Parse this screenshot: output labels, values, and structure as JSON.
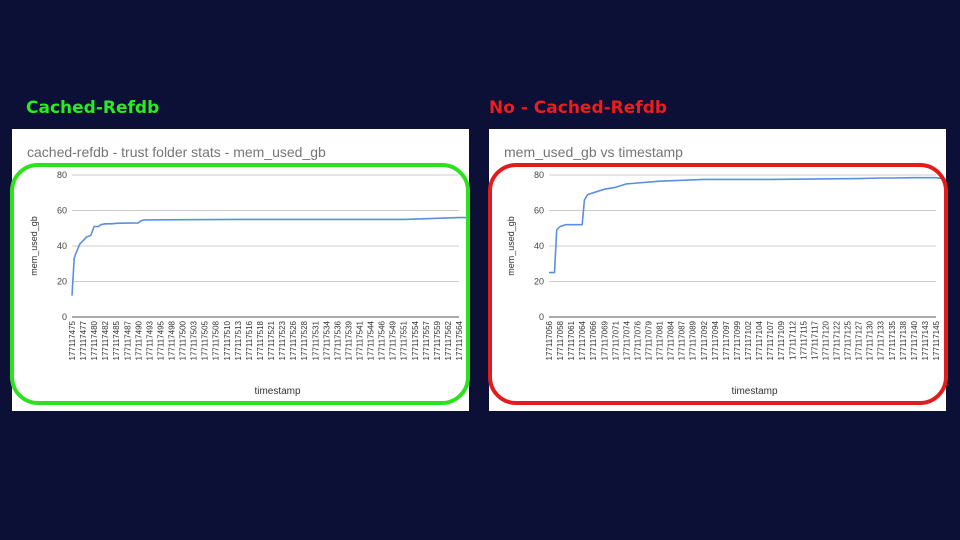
{
  "slide": {
    "background": "#0c0f36",
    "left_heading": "Cached-Refdb",
    "left_heading_color": "#2bed1e",
    "right_heading": "No - Cached-Refdb",
    "right_heading_color": "#ee1c1c",
    "left_frame_color": "#2be21d",
    "right_frame_color": "#e21b1b"
  },
  "chart_data": [
    {
      "type": "line",
      "title": "cached-refdb - trust folder stats - mem_used_gb",
      "xlabel": "timestamp",
      "ylabel": "mem_used_gb",
      "ylim": [
        0,
        80
      ],
      "yticks": [
        0,
        20,
        40,
        60,
        80
      ],
      "grid": true,
      "line_color": "#5b8fe0",
      "x_tick_labels": [
        "177117475",
        "177117477",
        "177117480",
        "177117482",
        "177117485",
        "177117487",
        "177117490",
        "177117493",
        "177117495",
        "177117498",
        "177117500",
        "177117503",
        "177117505",
        "177117508",
        "177117510",
        "177117513",
        "177117516",
        "177117518",
        "177117521",
        "177117523",
        "177117526",
        "177117528",
        "177117531",
        "177117534",
        "177117536",
        "177117539",
        "177117541",
        "177117544",
        "177117546",
        "177117549",
        "177117551",
        "177117554",
        "177117557",
        "177117559",
        "177117562",
        "177117564"
      ],
      "series": [
        {
          "x": [
            0,
            0.2,
            0.3,
            0.5,
            0.7,
            1,
            1.3,
            1.7,
            2,
            2.4,
            2.6,
            3,
            3.6,
            4,
            6,
            6.2,
            6.4,
            6.6,
            7,
            10,
            15,
            20,
            25,
            30,
            35,
            36,
            36.6
          ],
          "y": [
            12,
            33,
            35,
            38,
            41,
            43,
            45,
            46,
            51,
            51,
            52,
            52.5,
            52.5,
            52.8,
            53,
            54,
            54.5,
            54.7,
            54.7,
            54.8,
            55,
            55,
            55,
            55,
            56,
            56,
            55.5
          ]
        }
      ]
    },
    {
      "type": "line",
      "title": "mem_used_gb vs timestamp",
      "xlabel": "timestamp",
      "ylabel": "mem_used_gb",
      "ylim": [
        0,
        80
      ],
      "yticks": [
        0,
        20,
        40,
        60,
        80
      ],
      "grid": true,
      "line_color": "#5b8fe0",
      "x_tick_labels": [
        "177117056",
        "177117058",
        "177117061",
        "177117064",
        "177117066",
        "177117069",
        "177117071",
        "177117074",
        "177117076",
        "177117079",
        "177117081",
        "177117084",
        "177117087",
        "177117089",
        "177117092",
        "177117094",
        "177117097",
        "177117099",
        "177117102",
        "177117104",
        "177117107",
        "177117109",
        "177117112",
        "177117115",
        "177117117",
        "177117120",
        "177117122",
        "177117125",
        "177117127",
        "177117130",
        "177117133",
        "177117135",
        "177117138",
        "177117140",
        "177117143",
        "177117145"
      ],
      "series": [
        {
          "x": [
            0,
            0.5,
            0.7,
            1,
            1.5,
            2,
            3,
            3.2,
            3.5,
            4,
            5,
            6,
            7,
            8,
            10,
            14,
            20,
            28,
            30,
            31,
            33,
            35,
            36
          ],
          "y": [
            25,
            25,
            49,
            51,
            52,
            52,
            52,
            66,
            69,
            70,
            72,
            73,
            75,
            75.5,
            76.5,
            77.5,
            77.5,
            78,
            78.3,
            78.3,
            78.5,
            78.5,
            77.5
          ]
        }
      ]
    }
  ]
}
